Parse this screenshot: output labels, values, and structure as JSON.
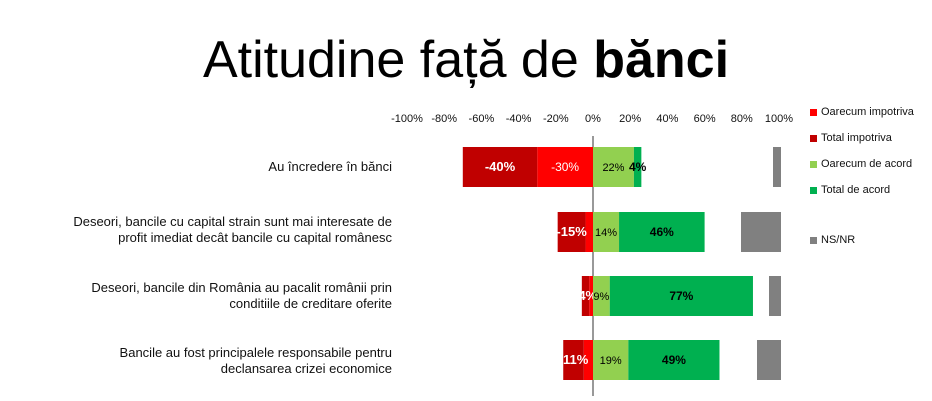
{
  "title": {
    "normal": "Atitudine față de ",
    "bold": "bănci"
  },
  "chart_data": {
    "type": "bar",
    "orientation": "horizontal-diverging",
    "x_ticks": [
      "-100%",
      "-80%",
      "-60%",
      "-40%",
      "-20%",
      "0%",
      "20%",
      "40%",
      "60%",
      "80%",
      "100%"
    ],
    "xlim": [
      -100,
      100
    ],
    "categories": [
      "Au încredere în bănci",
      "Deseori, bancile cu capital strain sunt mai interesate de profit imediat decât bancile cu capital românesc",
      "Deseori, bancile din România au pacalit românii prin conditiile de creditare oferite",
      "Bancile au fost principalele responsabile pentru declansarea crizei economice"
    ],
    "category_lines": [
      [
        "Au încredere în bănci"
      ],
      [
        "Deseori, bancile cu capital strain sunt mai interesate de",
        "profit imediat decât bancile cu capital românesc"
      ],
      [
        "Deseori, bancile din România au pacalit românii prin",
        "conditiile de creditare oferite"
      ],
      [
        "Bancile au fost principalele responsabile pentru",
        "declansarea crizei economice"
      ]
    ],
    "series": [
      {
        "name": "Oarecum impotriva",
        "color": "#ff0000",
        "values": [
          -30,
          -4,
          -2,
          -5
        ],
        "labels": [
          "-30%",
          "",
          "",
          ""
        ],
        "label_color": "#ffffff"
      },
      {
        "name": "Total impotriva",
        "color": "#c00000",
        "values": [
          -40,
          -15,
          -4,
          -11
        ],
        "labels": [
          "-40%",
          "-15%",
          "-4%",
          "-11%"
        ],
        "label_color": "#ffffff"
      },
      {
        "name": "Oarecum de acord",
        "color": "#92d050",
        "values": [
          22,
          14,
          9,
          19
        ],
        "labels": [
          "22%",
          "14%",
          "9%",
          "19%"
        ],
        "label_color": "#000000"
      },
      {
        "name": "Total de acord",
        "color": "#00b050",
        "values": [
          4,
          46,
          77,
          49
        ],
        "labels": [
          "4%",
          "46%",
          "77%",
          "49%"
        ],
        "label_color": "#000000"
      },
      {
        "name": "NS/NR",
        "color": "#808080",
        "values": [
          4,
          20,
          6,
          12
        ],
        "labels": [
          "",
          "",
          "",
          ""
        ],
        "label_color": "#000000"
      }
    ],
    "legend": {
      "position": "right"
    }
  }
}
